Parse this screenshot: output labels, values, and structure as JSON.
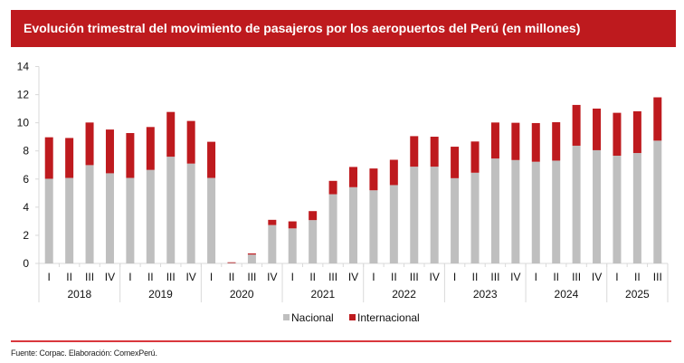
{
  "header": {
    "title": "Evolución trimestral del movimiento de pasajeros por los aeropuertos del Perú (en millones)"
  },
  "footer": {
    "source": "Fuente: Corpac. Elaboración: ComexPerú."
  },
  "colors": {
    "title_bar": "#BE1A1E",
    "nacional": "#BFBFBF",
    "internacional": "#BE1A1E",
    "footer_line": "#D9373D",
    "axis": "#D9D9D9"
  },
  "chart_data": {
    "type": "bar",
    "stacked": true,
    "title": "Evolución trimestral del movimiento de pasajeros por los aeropuertos del Perú (en millones)",
    "xlabel": "",
    "ylabel": "",
    "ylim": [
      0,
      14
    ],
    "yticks": [
      0,
      2,
      4,
      6,
      8,
      10,
      12,
      14
    ],
    "grid": false,
    "legend_position": "bottom-center",
    "groups": [
      {
        "label": "2018",
        "quarters": [
          "I",
          "II",
          "III",
          "IV"
        ]
      },
      {
        "label": "2019",
        "quarters": [
          "I",
          "II",
          "III",
          "IV"
        ]
      },
      {
        "label": "2020",
        "quarters": [
          "I",
          "II",
          "III",
          "IV"
        ]
      },
      {
        "label": "2021",
        "quarters": [
          "I",
          "II",
          "III",
          "IV"
        ]
      },
      {
        "label": "2022",
        "quarters": [
          "I",
          "II",
          "III",
          "IV"
        ]
      },
      {
        "label": "2023",
        "quarters": [
          "I",
          "II",
          "III",
          "IV"
        ]
      },
      {
        "label": "2024",
        "quarters": [
          "I",
          "II",
          "III",
          "IV"
        ]
      },
      {
        "label": "2025",
        "quarters": [
          "I",
          "II",
          "III"
        ]
      }
    ],
    "categories": [
      "2018-I",
      "2018-II",
      "2018-III",
      "2018-IV",
      "2019-I",
      "2019-II",
      "2019-III",
      "2019-IV",
      "2020-I",
      "2020-II",
      "2020-III",
      "2020-IV",
      "2021-I",
      "2021-II",
      "2021-III",
      "2021-IV",
      "2022-I",
      "2022-II",
      "2022-III",
      "2022-IV",
      "2023-I",
      "2023-II",
      "2023-III",
      "2023-IV",
      "2024-I",
      "2024-II",
      "2024-III",
      "2024-IV",
      "2025-I",
      "2025-II",
      "2025-III"
    ],
    "series": [
      {
        "name": "Nacional",
        "color": "#BFBFBF",
        "values": [
          6.02,
          6.08,
          6.99,
          6.41,
          6.08,
          6.65,
          7.59,
          7.1,
          6.08,
          0.03,
          0.63,
          2.73,
          2.49,
          3.08,
          4.92,
          5.42,
          5.2,
          5.57,
          6.88,
          6.88,
          6.06,
          6.45,
          7.46,
          7.35,
          7.23,
          7.31,
          8.37,
          8.05,
          7.66,
          7.85,
          8.73
        ]
      },
      {
        "name": "Internacional",
        "color": "#BE1A1E",
        "values": [
          2.95,
          2.84,
          3.03,
          3.11,
          3.19,
          3.05,
          3.18,
          3.03,
          2.57,
          0.05,
          0.08,
          0.37,
          0.5,
          0.64,
          0.95,
          1.44,
          1.55,
          1.8,
          2.17,
          2.13,
          2.24,
          2.22,
          2.56,
          2.65,
          2.75,
          2.73,
          2.9,
          2.96,
          3.05,
          2.97,
          3.08
        ]
      }
    ]
  }
}
